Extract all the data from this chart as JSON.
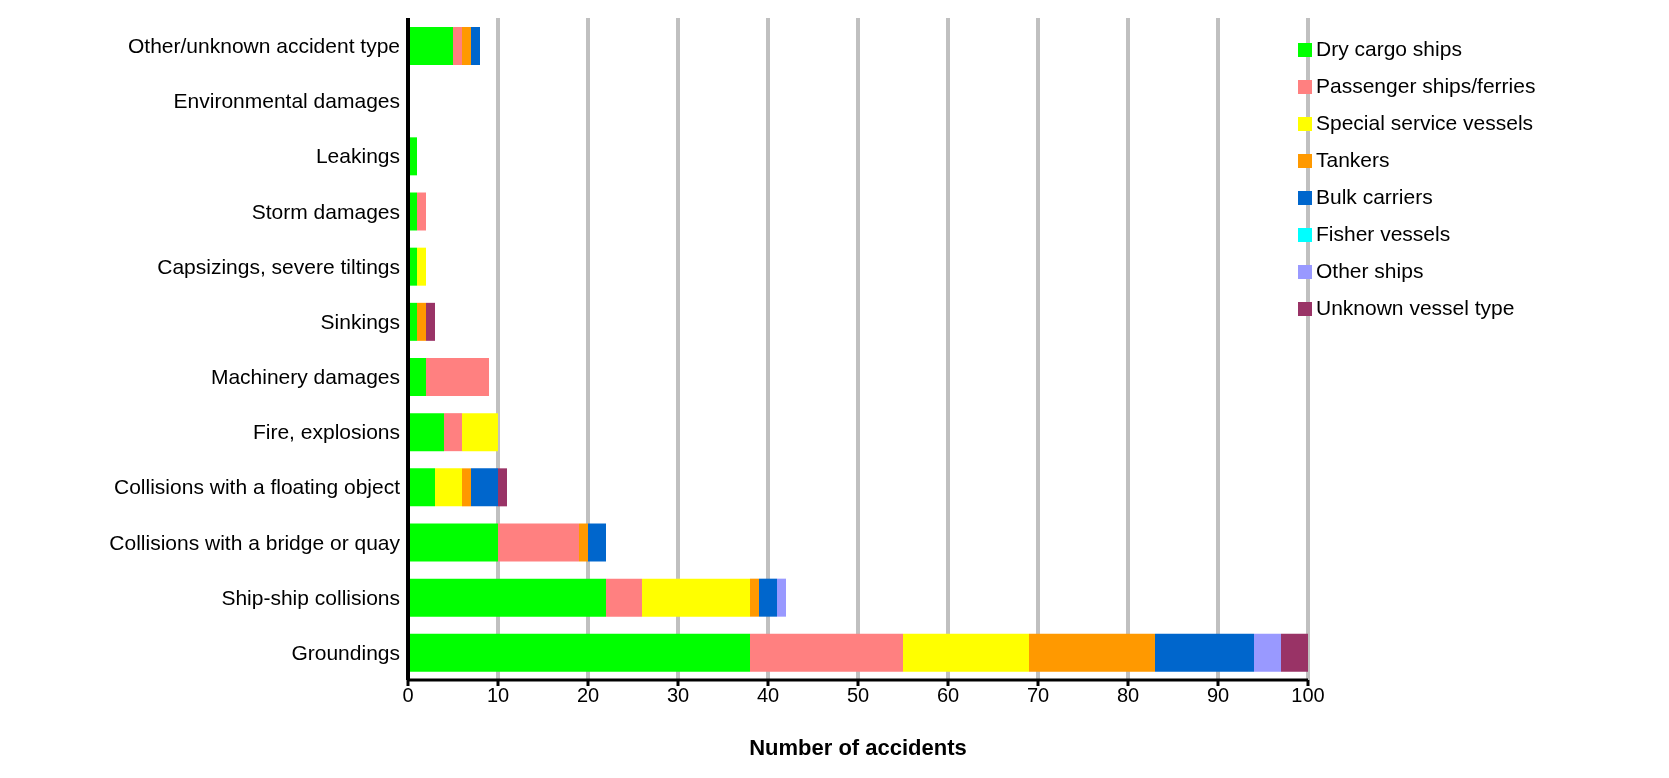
{
  "chart_data": {
    "type": "bar",
    "orientation": "horizontal",
    "stacked": true,
    "xlabel": "Number of accidents",
    "categories": [
      "Other/unknown accident type",
      "Environmental damages",
      "Leakings",
      "Storm damages",
      "Capsizings, severe tiltings",
      "Sinkings",
      "Machinery damages",
      "Fire, explosions",
      "Collisions with a floating object",
      "Collisions with a bridge or quay",
      "Ship-ship collisions",
      "Groundings"
    ],
    "series": [
      {
        "name": "Dry cargo ships",
        "color": "#00ff00",
        "values": [
          5,
          0,
          1,
          1,
          1,
          1,
          2,
          4,
          3,
          10,
          22,
          38
        ]
      },
      {
        "name": "Passenger ships/ferries",
        "color": "#ff8080",
        "values": [
          1,
          0,
          0,
          1,
          0,
          0,
          7,
          2,
          0,
          9,
          4,
          17
        ]
      },
      {
        "name": "Special service vessels",
        "color": "#ffff00",
        "values": [
          0,
          0,
          0,
          0,
          1,
          0,
          0,
          4,
          3,
          0,
          12,
          14
        ]
      },
      {
        "name": "Tankers",
        "color": "#ff9900",
        "values": [
          1,
          0,
          0,
          0,
          0,
          1,
          0,
          0,
          1,
          1,
          1,
          14
        ]
      },
      {
        "name": "Bulk carriers",
        "color": "#0066cc",
        "values": [
          1,
          0,
          0,
          0,
          0,
          0,
          0,
          0,
          3,
          2,
          2,
          11
        ]
      },
      {
        "name": "Fisher vessels",
        "color": "#00ffff",
        "values": [
          0,
          0,
          0,
          0,
          0,
          0,
          0,
          0,
          0,
          0,
          0,
          0
        ]
      },
      {
        "name": "Other ships",
        "color": "#9999ff",
        "values": [
          0,
          0,
          0,
          0,
          0,
          0,
          0,
          0,
          0,
          0,
          1,
          3
        ]
      },
      {
        "name": "Unknown vessel type",
        "color": "#993366",
        "values": [
          0,
          0,
          0,
          0,
          0,
          1,
          0,
          0,
          1,
          0,
          0,
          3
        ]
      }
    ],
    "xlim": [
      0,
      100
    ],
    "xticks": [
      0,
      10,
      20,
      30,
      40,
      50,
      60,
      70,
      80,
      90,
      100
    ],
    "grid": "x",
    "legend": "top right"
  }
}
